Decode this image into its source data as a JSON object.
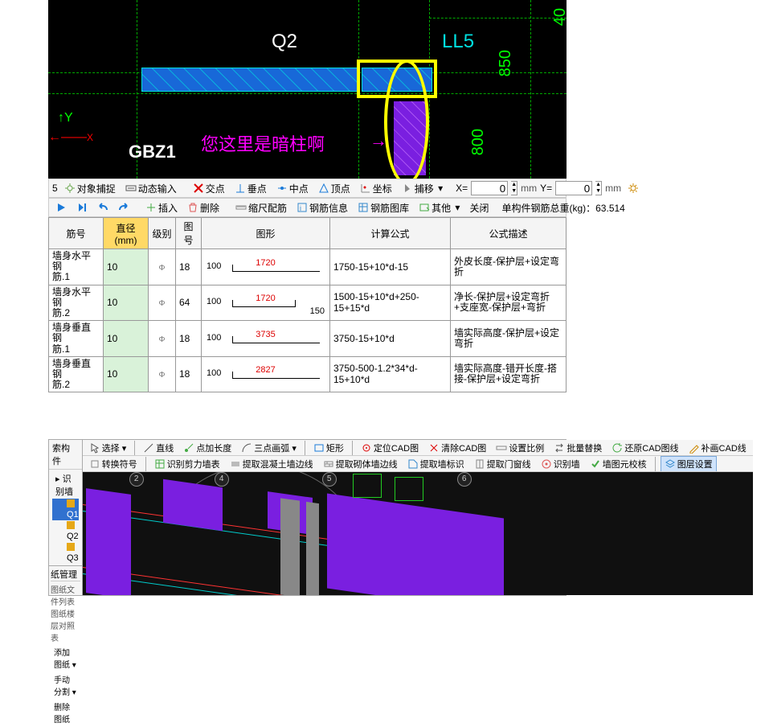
{
  "cad1": {
    "labels": {
      "q2": "Q2",
      "ll5": "LL5",
      "gbz1": "GBZ1"
    },
    "annotation": {
      "text": "您这里是暗柱啊",
      "arrow": "→"
    },
    "dims": {
      "d850": "850",
      "d800": "800",
      "d40": "40"
    },
    "axes": {
      "y": "Y",
      "x": "X"
    },
    "gridline_color": "#00aa00",
    "beam_color": "#1868d8",
    "highlight_color": "#ffff00",
    "purple_color": "#7a1fe0"
  },
  "toolbar1": {
    "left_marker": "5",
    "obj_snap": "对象捕捉",
    "dyn_input": "动态输入",
    "jiaodian": "交点",
    "chuidian": "垂点",
    "zhongdian": "中点",
    "dingdian": "顶点",
    "zuobiao": "坐标",
    "buhuo": "捕移",
    "x_label": "X=",
    "x_val": "0",
    "y_label": "Y=",
    "y_val": "0",
    "unit": "mm"
  },
  "toolbar2": {
    "charu": "插入",
    "shanchu": "删除",
    "suochi": "缩尺配筋",
    "gangjin_info": "钢筋信息",
    "gangjin_lib": "钢筋图库",
    "qita": "其他",
    "guanbi": "关闭",
    "summary": "单构件钢筋总重(kg)：63.514"
  },
  "table": {
    "headers": {
      "jinhao": "筋号",
      "zhijing": "直径(mm)",
      "jibie": "级别",
      "tuhao": "图号",
      "tuxing": "图形",
      "gongshi": "计算公式",
      "miaoshu": "公式描述"
    },
    "rows": [
      {
        "name": "墙身水平钢\n筋.1",
        "dia": "10",
        "lvl": "Φ",
        "tu": "18",
        "shape_l": "100",
        "shape_red": "1720",
        "shape_r": "",
        "formula": "1750-15+10*d-15",
        "desc": "外皮长度-保护层+设定弯折"
      },
      {
        "name": "墙身水平钢\n筋.2",
        "dia": "10",
        "lvl": "Φ",
        "tu": "64",
        "shape_l": "100",
        "shape_red": "1720",
        "shape_r": "150",
        "formula": "1500-15+10*d+250-15+15*d",
        "desc": "净长-保护层+设定弯折+支座宽-保护层+弯折"
      },
      {
        "name": "墙身垂直钢\n筋.1",
        "dia": "10",
        "lvl": "Φ",
        "tu": "18",
        "shape_l": "100",
        "shape_red": "3735",
        "shape_r": "",
        "formula": "3750-15+10*d",
        "desc": "墙实际高度-保护层+设定弯折"
      },
      {
        "name": "墙身垂直钢\n筋.2",
        "dia": "10",
        "lvl": "Φ",
        "tu": "18",
        "shape_l": "100",
        "shape_red": "2827",
        "shape_r": "",
        "formula": "3750-500-1.2*34*d-15+10*d",
        "desc": "墙实际高度-错开长度-搭接-保护层+设定弯折"
      }
    ]
  },
  "cad2": {
    "left": {
      "hdr": "索构件",
      "tree_root": "识别墙",
      "tree_items": [
        "Q1",
        "Q2",
        "Q3"
      ],
      "tree_selected": "Q1",
      "bottom_hdr": "纸管理",
      "bottom_sub": "图纸文件列表  图纸楼层对照表",
      "combo1": "添加图纸 ▾",
      "combo2": "手动分割 ▾",
      "combo3": "删除图纸"
    },
    "tb1": {
      "xuanze": "选择 ▾",
      "zhixian": "直线",
      "dianjia": "点加长度",
      "sandian": "三点画弧 ▾",
      "juxing": "矩形",
      "dingwei": "定位CAD图",
      "qingchu": "清除CAD图",
      "bili": "设置比例",
      "piliang": "批量替换",
      "huanyuan": "还原CAD图线",
      "buhua": "补画CAD线"
    },
    "tb2": {
      "zhuanhuan": "转换符号",
      "jianli": "识别剪力墙表",
      "hunning": "提取混凝土墙边线",
      "qiti": "提取砌体墙边线",
      "qiangbiao": "提取墙标识",
      "menchuang": "提取门窗线",
      "shibie": "识别墙",
      "jiaohe": "墙图元校核",
      "tuceng": "图层设置"
    },
    "nodes": [
      "2",
      "4",
      "5",
      "6"
    ]
  }
}
